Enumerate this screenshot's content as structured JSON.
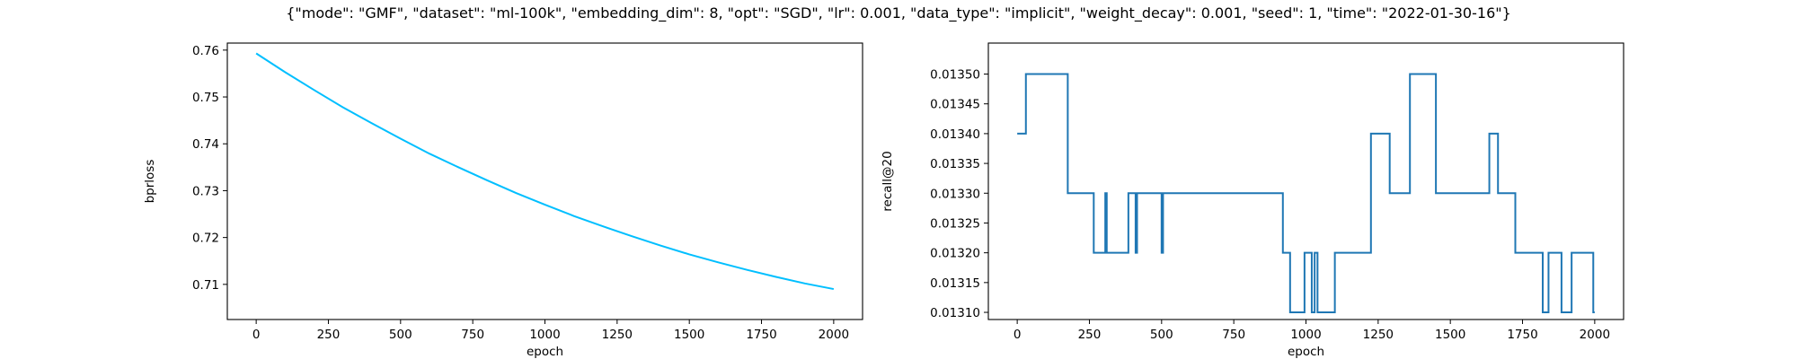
{
  "figure": {
    "title": "{\"mode\": \"GMF\", \"dataset\": \"ml-100k\", \"embedding_dim\": 8, \"opt\": \"SGD\", \"lr\": 0.001, \"data_type\": \"implicit\", \"weight_decay\": 0.001, \"seed\": 1, \"time\": \"2022-01-30-16\"}"
  },
  "chart_data": [
    {
      "type": "line",
      "xlabel": "epoch",
      "ylabel": "bprloss",
      "xlim": [
        -100,
        2100
      ],
      "ylim": [
        0.7025,
        0.7615
      ],
      "xticks": [
        0,
        250,
        500,
        750,
        1000,
        1250,
        1500,
        1750,
        2000
      ],
      "yticks": [
        0.71,
        0.72,
        0.73,
        0.74,
        0.75,
        0.76
      ],
      "tick_decimals": 2,
      "grid": false,
      "line_color": "#00bfff",
      "series": [
        {
          "x": [
            0,
            100,
            200,
            300,
            400,
            500,
            600,
            700,
            800,
            900,
            1000,
            1100,
            1200,
            1300,
            1400,
            1500,
            1600,
            1700,
            1800,
            1900,
            2000
          ],
          "y": [
            0.7593,
            0.7553,
            0.7515,
            0.7478,
            0.7444,
            0.7411,
            0.7379,
            0.735,
            0.7322,
            0.7295,
            0.727,
            0.7246,
            0.7224,
            0.7203,
            0.7183,
            0.7164,
            0.7147,
            0.7131,
            0.7116,
            0.7102,
            0.709
          ]
        }
      ]
    },
    {
      "type": "line",
      "step": true,
      "xlabel": "epoch",
      "ylabel": "recall@20",
      "xlim": [
        -100,
        2100
      ],
      "ylim": [
        0.013088,
        0.013552
      ],
      "xticks": [
        0,
        250,
        500,
        750,
        1000,
        1250,
        1500,
        1750,
        2000
      ],
      "yticks": [
        0.0131,
        0.01315,
        0.0132,
        0.01325,
        0.0133,
        0.01335,
        0.0134,
        0.01345,
        0.0135
      ],
      "tick_decimals": 5,
      "grid": false,
      "line_color": "#1f77b4",
      "series": [
        {
          "x": [
            0,
            30,
            30,
            175,
            175,
            265,
            265,
            305,
            305,
            310,
            310,
            385,
            385,
            410,
            410,
            415,
            415,
            500,
            500,
            505,
            505,
            920,
            920,
            945,
            945,
            995,
            995,
            1020,
            1020,
            1030,
            1030,
            1040,
            1040,
            1100,
            1100,
            1225,
            1225,
            1290,
            1290,
            1360,
            1360,
            1450,
            1450,
            1635,
            1635,
            1665,
            1665,
            1725,
            1725,
            1820,
            1820,
            1840,
            1840,
            1885,
            1885,
            1920,
            1920,
            1995,
            1995,
            2000
          ],
          "y": [
            0.0134,
            0.0134,
            0.0135,
            0.0135,
            0.0133,
            0.0133,
            0.0132,
            0.0132,
            0.0133,
            0.0133,
            0.0132,
            0.0132,
            0.0133,
            0.0133,
            0.0132,
            0.0132,
            0.0133,
            0.0133,
            0.0132,
            0.0132,
            0.0133,
            0.0133,
            0.0132,
            0.0132,
            0.0131,
            0.0131,
            0.0132,
            0.0132,
            0.0131,
            0.0131,
            0.0132,
            0.0132,
            0.0131,
            0.0131,
            0.0132,
            0.0132,
            0.0134,
            0.0134,
            0.0133,
            0.0133,
            0.0135,
            0.0135,
            0.0133,
            0.0133,
            0.0134,
            0.0134,
            0.0133,
            0.0133,
            0.0132,
            0.0132,
            0.0131,
            0.0131,
            0.0132,
            0.0132,
            0.0131,
            0.0131,
            0.0132,
            0.0132,
            0.0131,
            0.0131
          ]
        }
      ]
    }
  ]
}
